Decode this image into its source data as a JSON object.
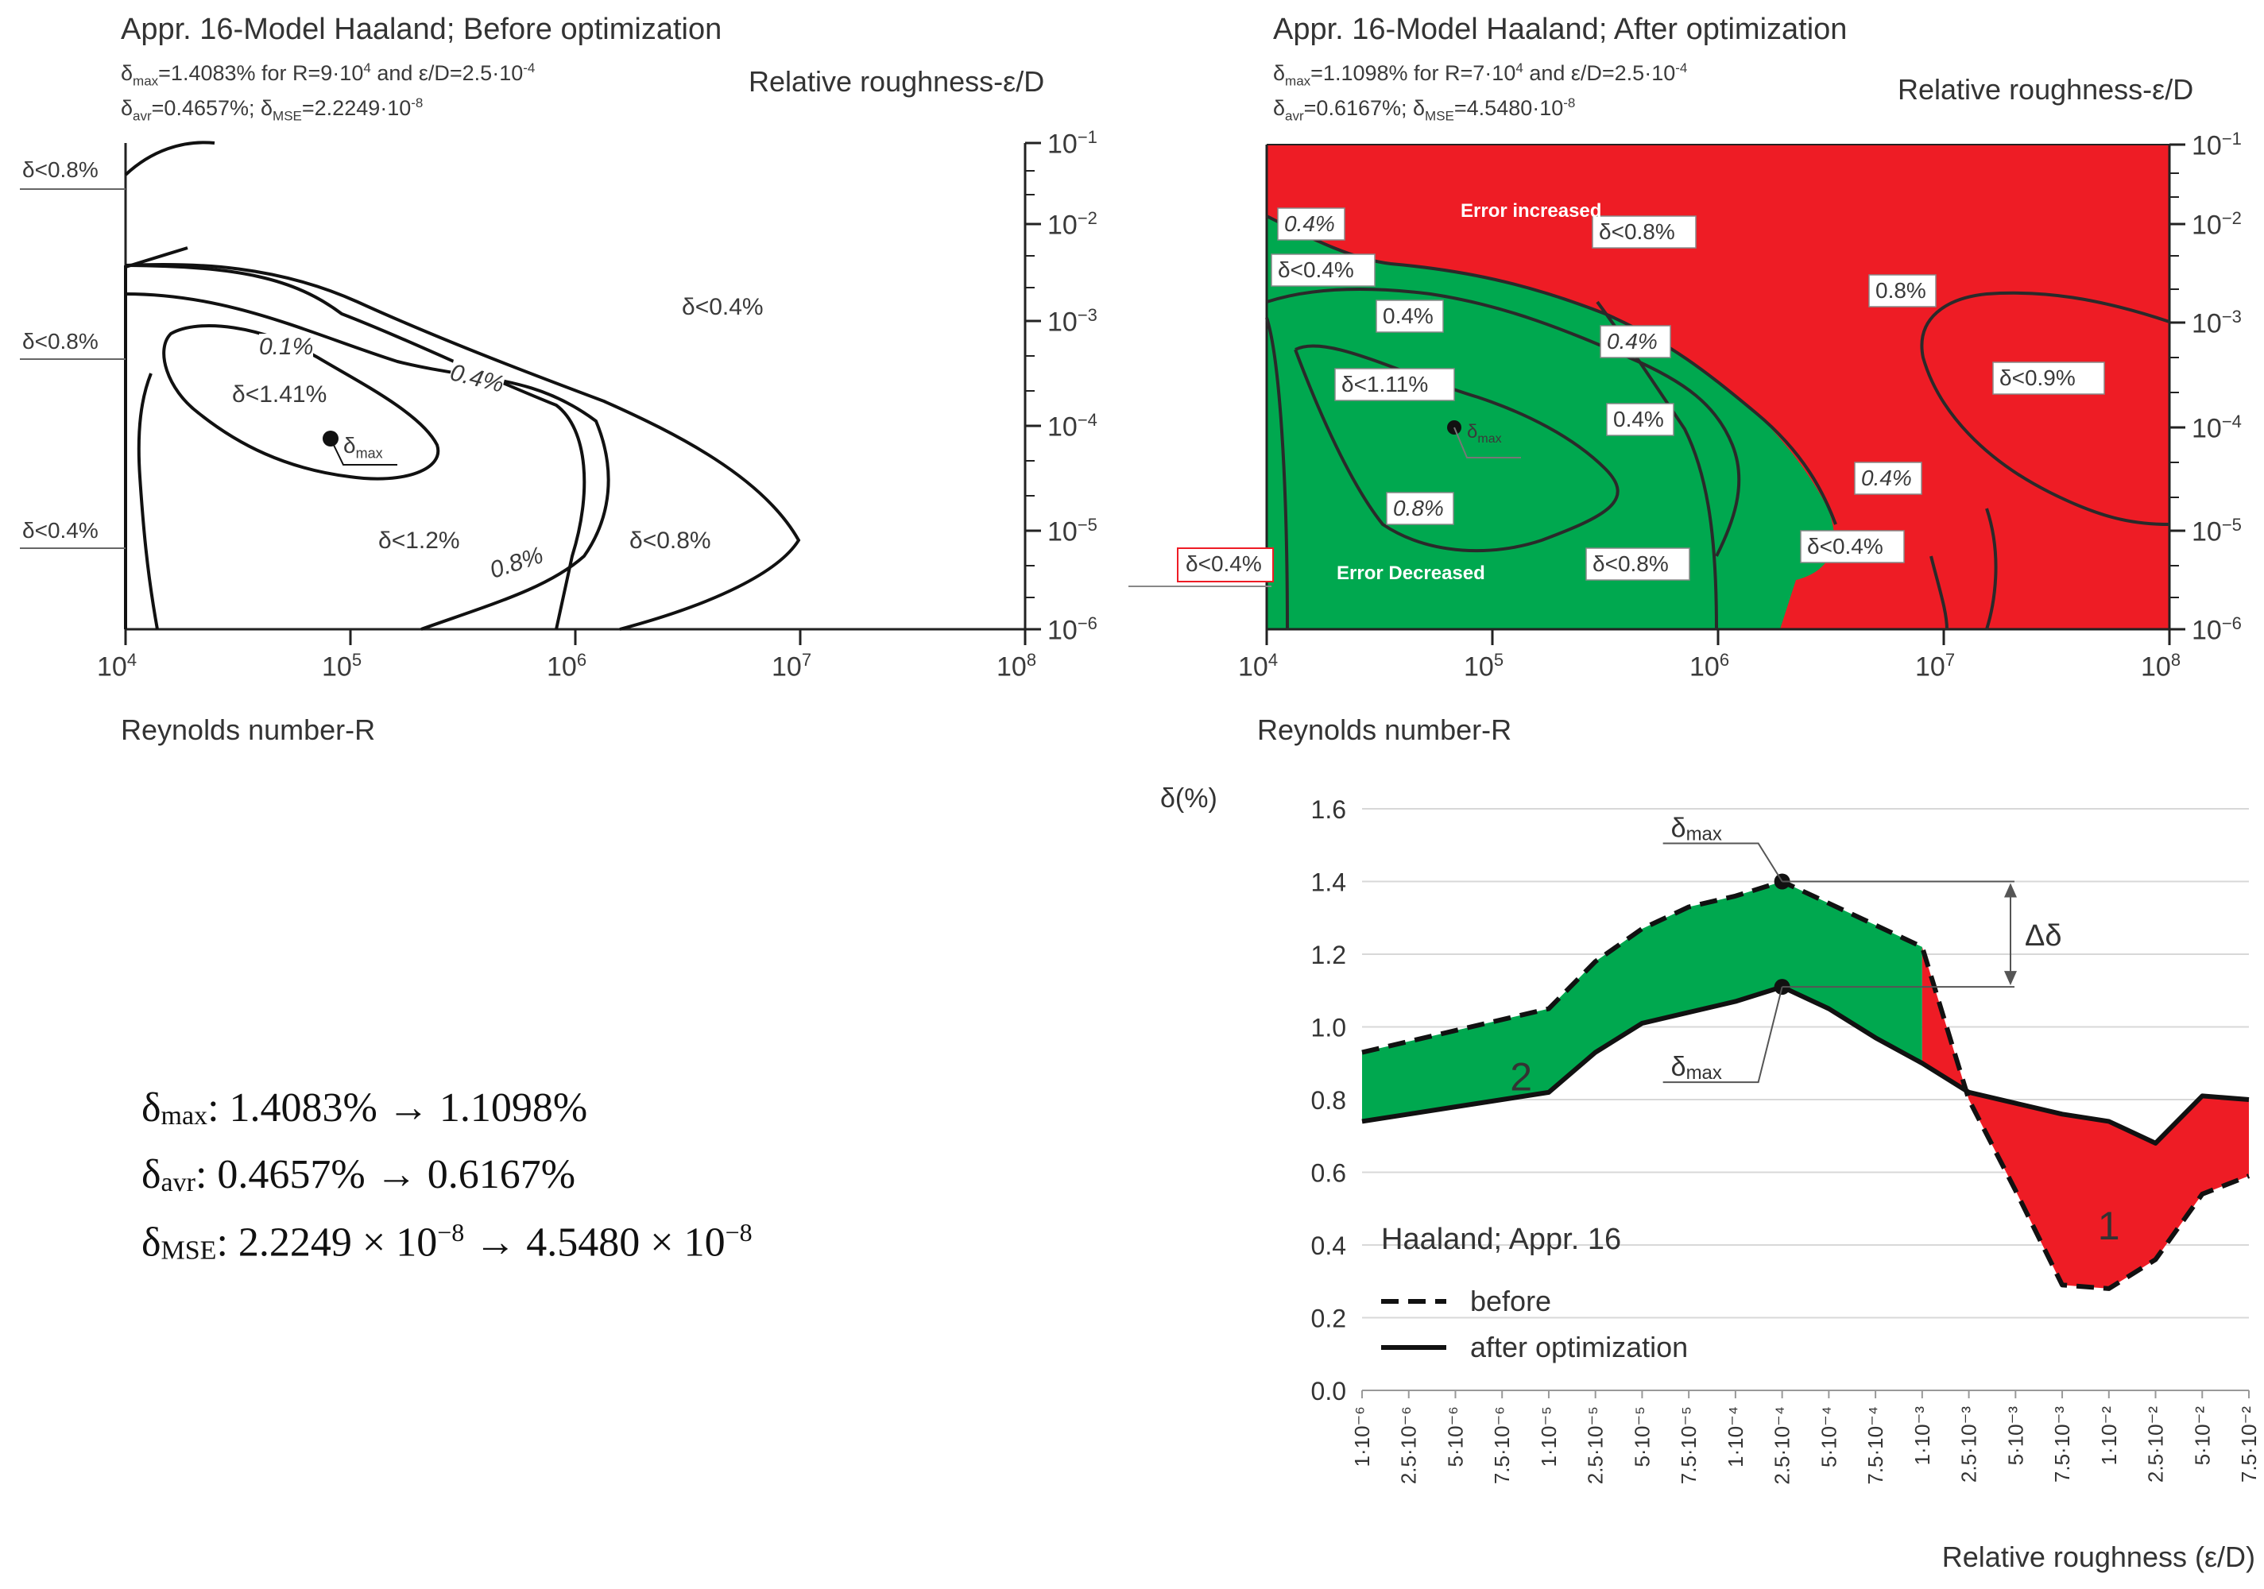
{
  "panel_before": {
    "title": "Appr. 16-Model Haaland; Before optimization",
    "dmax_line": {
      "sym": "δ",
      "sub": "max",
      "text": "=1.4083% for R=9·10",
      "exp_r": "4",
      "mid": " and ε/D=2.5·10",
      "exp_e": "-4"
    },
    "davr_line": {
      "sym": "δ",
      "sub": "avr",
      "text": "=0.4657%; δ",
      "sub2": "MSE",
      "text2": "=2.2249·10",
      "exp": "-8"
    },
    "right_axis_label": "Relative roughness-ε/D",
    "x_axis_label": "Reynolds number-R",
    "x_ticks": [
      "10",
      "10",
      "10",
      "10",
      "10"
    ],
    "x_exps": [
      "4",
      "5",
      "6",
      "7",
      "8"
    ],
    "y_ticks": [
      "10",
      "10",
      "10",
      "10",
      "10",
      "10"
    ],
    "y_exps": [
      "−1",
      "−2",
      "−3",
      "−4",
      "−5",
      "−6"
    ],
    "left_labels": [
      "δ<0.8%",
      "δ<0.8%",
      "δ<0.4%"
    ],
    "region_labels": [
      "δ<0.4%",
      "δ<1.41%",
      "δ<1.2%",
      "δ<0.8%"
    ],
    "contour_labels": [
      "0.1%",
      "0.4%",
      "0.8%"
    ],
    "marker_label": "δ",
    "marker_sub": "max"
  },
  "panel_after": {
    "title": "Appr. 16-Model Haaland; After optimization",
    "dmax_line": {
      "sym": "δ",
      "sub": "max",
      "text": "=1.1098% for R=7·10",
      "exp_r": "4",
      "mid": " and ε/D=2.5·10",
      "exp_e": "-4"
    },
    "davr_line": {
      "sym": "δ",
      "sub": "avr",
      "text": "=0.6167%; δ",
      "sub2": "MSE",
      "text2": "=4.5480·10",
      "exp": "-8"
    },
    "right_axis_label": "Relative roughness-ε/D",
    "x_axis_label": "Reynolds number-R",
    "x_ticks": [
      "10",
      "10",
      "10",
      "10",
      "10"
    ],
    "x_exps": [
      "4",
      "5",
      "6",
      "7",
      "8"
    ],
    "y_ticks": [
      "10",
      "10",
      "10",
      "10",
      "10",
      "10"
    ],
    "y_exps": [
      "−1",
      "−2",
      "−3",
      "−4",
      "−5",
      "−6"
    ],
    "error_increased": "Error increased",
    "error_decreased": "Error Decreased",
    "boxed_labels": [
      "0.4%",
      "δ<0.8%",
      "δ<0.4%",
      "0.4%",
      "0.8%",
      "δ<1.11%",
      "δ<0.9%",
      "0.4%",
      "0.4%",
      "0.8%",
      "δ<0.8%",
      "δ<0.4%",
      "0.4%"
    ],
    "left_label": "δ<0.4%",
    "marker_label": "δ",
    "marker_sub": "max",
    "colors": {
      "increased": "#ee1c25",
      "decreased": "#00a84f"
    }
  },
  "summary": {
    "lines": [
      {
        "sym": "δ",
        "sub": "max",
        "text": ": 1.4083% → 1.1098%",
        "exp": ""
      },
      {
        "sym": "δ",
        "sub": "avr",
        "text": ": 0.4657% → 0.6167%",
        "exp": ""
      },
      {
        "sym": "δ",
        "sub": "MSE",
        "text": ": 2.2249 × 10",
        "exp": "−8",
        "text2": " → 4.5480 × 10",
        "exp2": "−8"
      }
    ]
  },
  "chart_data": {
    "type": "line",
    "title": "Haaland; Appr. 16",
    "ylabel": "δ(%)",
    "xlabel": "Relative roughness (ε/D)",
    "ylim": [
      0,
      1.6
    ],
    "yticks": [
      "0.0",
      "0.2",
      "0.4",
      "0.6",
      "0.8",
      "1.0",
      "1.2",
      "1.4",
      "1.6"
    ],
    "categories": [
      "1·10⁻⁶",
      "2.5·10⁻⁶",
      "5·10⁻⁶",
      "7.5·10⁻⁶",
      "1·10⁻⁵",
      "2.5·10⁻⁵",
      "5·10⁻⁵",
      "7.5·10⁻⁵",
      "1·10⁻⁴",
      "2.5·10⁻⁴",
      "5·10⁻⁴",
      "7.5·10⁻⁴",
      "1·10⁻³",
      "2.5·10⁻³",
      "5·10⁻³",
      "7.5·10⁻³",
      "1·10⁻²",
      "2.5·10⁻²",
      "5·10⁻²",
      "7.5·10⁻²"
    ],
    "series": [
      {
        "name": "before",
        "style": "dashed",
        "values": [
          0.93,
          0.96,
          0.99,
          1.02,
          1.05,
          1.18,
          1.27,
          1.33,
          1.36,
          1.4,
          1.34,
          1.28,
          1.22,
          0.8,
          0.55,
          0.29,
          0.28,
          0.36,
          0.54,
          0.59
        ]
      },
      {
        "name": "after optimization",
        "style": "solid",
        "values": [
          0.74,
          0.76,
          0.78,
          0.8,
          0.82,
          0.93,
          1.01,
          1.04,
          1.07,
          1.11,
          1.05,
          0.97,
          0.9,
          0.82,
          0.79,
          0.76,
          0.74,
          0.68,
          0.81,
          0.8
        ]
      }
    ],
    "fill_colors": {
      "decreased": "#00a84f",
      "increased": "#ee1c25"
    },
    "region_labels": [
      "2",
      "1"
    ],
    "annotations": {
      "dmax": "δ",
      "dmax_sub": "max",
      "delta": "Δδ"
    },
    "legend_title": "Haaland; Appr. 16",
    "legend": [
      "before",
      "after optimization"
    ]
  }
}
